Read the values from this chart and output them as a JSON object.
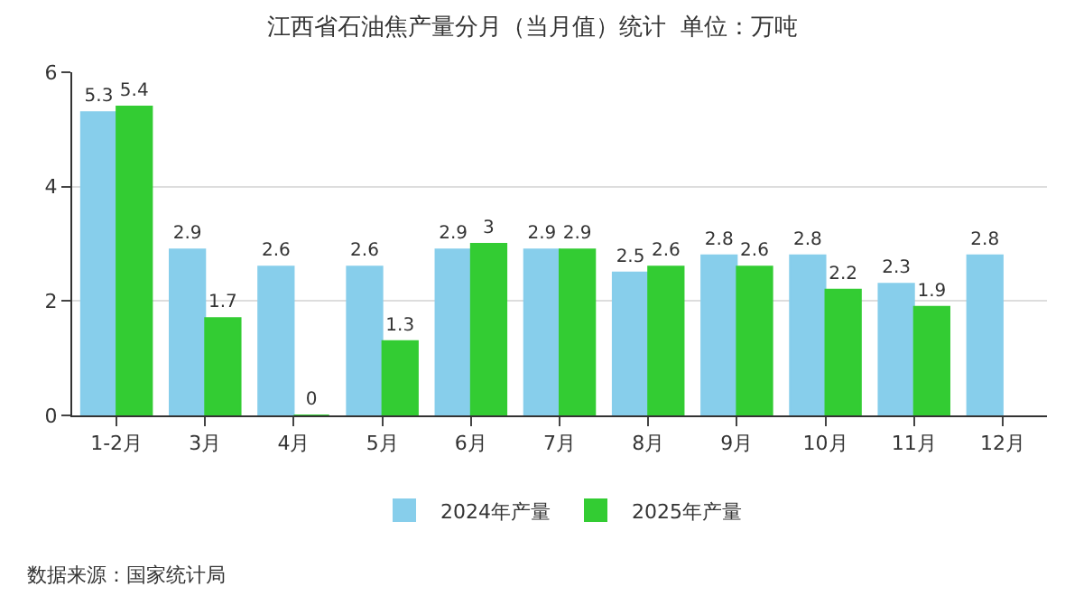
{
  "chart_data": {
    "type": "bar",
    "title": "江西省石油焦产量分月（当月值）统计  单位：万吨",
    "categories": [
      "1-2月",
      "3月",
      "4月",
      "5月",
      "6月",
      "7月",
      "8月",
      "9月",
      "10月",
      "11月",
      "12月"
    ],
    "series": [
      {
        "name": "2024年产量",
        "color": "#87ceeb",
        "values": [
          5.3,
          2.9,
          2.6,
          2.6,
          2.9,
          2.9,
          2.5,
          2.8,
          2.8,
          2.3,
          2.8
        ]
      },
      {
        "name": "2025年产量",
        "color": "#33cc33",
        "values": [
          5.4,
          1.7,
          0,
          1.3,
          3,
          2.9,
          2.6,
          2.6,
          2.2,
          1.9,
          null
        ]
      }
    ],
    "ylim": [
      0,
      6
    ],
    "yticks": [
      0,
      2,
      4,
      6
    ],
    "grid": "y",
    "legend": "bottom",
    "data_labels": true,
    "annotations": [
      "数据来源：国家统计局"
    ]
  }
}
